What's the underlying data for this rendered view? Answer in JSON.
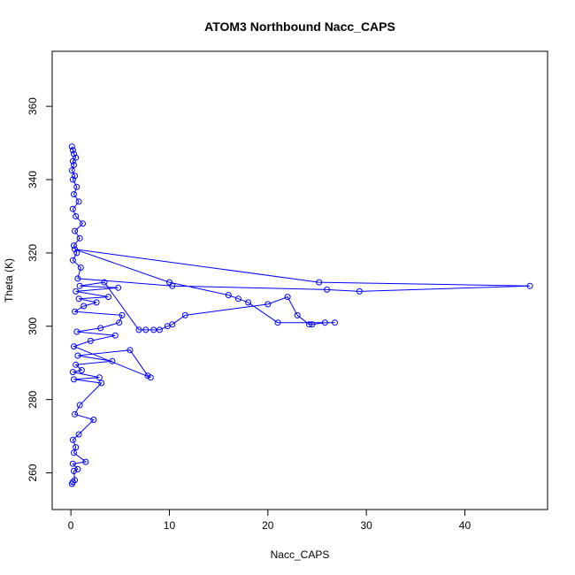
{
  "chart_data": {
    "type": "line",
    "title": "ATOM3 Northbound Nacc_CAPS",
    "xlabel": "Nacc_CAPS",
    "ylabel": "Theta (K)",
    "xlim": [
      -1.9,
      48.4
    ],
    "ylim": [
      250,
      375
    ],
    "xticks": [
      0,
      10,
      20,
      30,
      40
    ],
    "yticks": [
      260,
      280,
      300,
      320,
      340,
      360
    ],
    "grid": false,
    "legend": "none",
    "series_color": "#0000ff",
    "marker": "open-circle",
    "series": [
      {
        "name": "",
        "x": [
          0.1,
          0.2,
          0.4,
          0.3,
          0.7,
          0.2,
          1.5,
          0.3,
          0.5,
          0.2,
          0.8,
          2.3,
          0.4,
          0.9,
          3.1,
          0.3,
          2.9,
          0.2,
          1.1,
          0.5,
          4.2,
          0.7,
          6.0,
          7.8,
          8.1,
          0.3,
          2.0,
          4.5,
          0.6,
          3.0,
          4.9,
          5.2,
          0.4,
          1.3,
          2.6,
          0.8,
          3.8,
          0.5,
          4.8,
          0.9,
          3.4,
          6.9,
          7.6,
          8.4,
          9.0,
          9.8,
          10.3,
          11.6,
          20.0,
          22.0,
          23.0,
          24.2,
          24.5,
          25.8,
          26.8,
          21.0,
          18.0,
          17.0,
          16.0,
          10.0,
          0.4,
          25.2,
          46.6,
          29.3,
          26.0,
          10.3,
          0.7,
          1.0,
          0.2,
          0.6,
          0.3,
          0.9,
          0.4,
          1.2,
          0.5,
          0.2,
          0.8,
          0.3,
          0.6,
          0.2,
          0.4,
          0.1,
          0.3,
          0.2,
          0.5,
          0.3,
          0.2,
          0.1
        ],
        "y": [
          257,
          257.5,
          258,
          260.5,
          261,
          262.5,
          263,
          265.5,
          267,
          269,
          270.5,
          274.5,
          276,
          278.5,
          284.5,
          285.5,
          286,
          287.5,
          288,
          289.5,
          290.5,
          292,
          293.5,
          286.5,
          286,
          294.5,
          296,
          297.5,
          298.5,
          299.5,
          301,
          303,
          304,
          305.5,
          306.5,
          307.5,
          308,
          309.5,
          310.5,
          311,
          312,
          299,
          299,
          299,
          299,
          300,
          300.5,
          303,
          306,
          308,
          303,
          300.5,
          300.5,
          301,
          301,
          301,
          306.5,
          307.5,
          308.5,
          312,
          321,
          312,
          311,
          309.5,
          310,
          311,
          313,
          316,
          318,
          320,
          322,
          324,
          326,
          328,
          330,
          332,
          334,
          336,
          338,
          340,
          341,
          342.5,
          344,
          345,
          346,
          347,
          348,
          349
        ]
      }
    ]
  }
}
